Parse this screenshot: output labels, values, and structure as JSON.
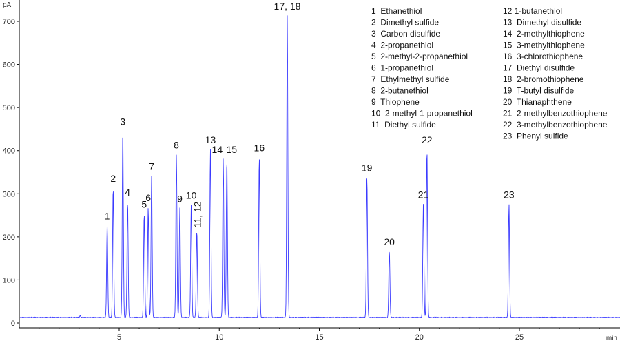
{
  "chart_data": {
    "type": "line",
    "title": "",
    "xlabel": "min",
    "ylabel": "pA",
    "xlim": [
      0,
      30
    ],
    "ylim": [
      0,
      720
    ],
    "x_ticks": [
      5,
      10,
      15,
      20,
      25
    ],
    "y_ticks": [
      0,
      100,
      200,
      300,
      400,
      500,
      600,
      700
    ],
    "baseline": 13,
    "series": [
      {
        "trace_color": "#3b3bff",
        "peaks": [
          {
            "x": 4.4,
            "y": 228
          },
          {
            "x": 4.7,
            "y": 315
          },
          {
            "x": 5.18,
            "y": 447
          },
          {
            "x": 5.42,
            "y": 283
          },
          {
            "x": 6.25,
            "y": 255
          },
          {
            "x": 6.45,
            "y": 270
          },
          {
            "x": 6.62,
            "y": 343
          },
          {
            "x": 7.86,
            "y": 392
          },
          {
            "x": 8.03,
            "y": 268
          },
          {
            "x": 8.6,
            "y": 276
          },
          {
            "x": 8.88,
            "y": 215
          },
          {
            "x": 9.56,
            "y": 404
          },
          {
            "x": 10.2,
            "y": 382
          },
          {
            "x": 10.38,
            "y": 382
          },
          {
            "x": 12.0,
            "y": 386
          },
          {
            "x": 13.4,
            "y": 714
          },
          {
            "x": 17.38,
            "y": 340
          },
          {
            "x": 18.5,
            "y": 168
          },
          {
            "x": 20.2,
            "y": 277
          },
          {
            "x": 20.38,
            "y": 404
          },
          {
            "x": 24.48,
            "y": 277
          }
        ]
      }
    ],
    "peak_labels": [
      {
        "text": "1",
        "x": 4.4,
        "y": 228
      },
      {
        "text": "2",
        "x": 4.7,
        "y": 315
      },
      {
        "text": "3",
        "x": 5.18,
        "y": 447
      },
      {
        "text": "4",
        "x": 5.42,
        "y": 283
      },
      {
        "text": "5",
        "x": 6.25,
        "y": 255
      },
      {
        "text": "6",
        "x": 6.45,
        "y": 270
      },
      {
        "text": "7",
        "x": 6.62,
        "y": 343
      },
      {
        "text": "8",
        "x": 7.86,
        "y": 392
      },
      {
        "text": "9",
        "x": 8.03,
        "y": 268
      },
      {
        "text": "10",
        "x": 8.6,
        "y": 276
      },
      {
        "text": "11, 12",
        "x": 8.88,
        "y": 215,
        "vertical": true
      },
      {
        "text": "13",
        "x": 9.56,
        "y": 404
      },
      {
        "text": "14",
        "x": 9.9,
        "y": 382
      },
      {
        "text": "15",
        "x": 10.62,
        "y": 382
      },
      {
        "text": "16",
        "x": 12.0,
        "y": 386
      },
      {
        "text": "17, 18",
        "x": 13.4,
        "y": 714
      },
      {
        "text": "19",
        "x": 17.38,
        "y": 340
      },
      {
        "text": "20",
        "x": 18.5,
        "y": 168
      },
      {
        "text": "21",
        "x": 20.2,
        "y": 277
      },
      {
        "text": "22",
        "x": 20.38,
        "y": 404
      },
      {
        "text": "23",
        "x": 24.48,
        "y": 277
      }
    ],
    "legend": {
      "placement": "top-right",
      "columns": [
        [
          "1  Ethanethiol",
          "2  Dimethyl sulfide",
          "3  Carbon disulfide",
          "4  2-propanethiol",
          "5  2-methyl-2-propanethiol",
          "6  1-propanethiol",
          "7  Ethylmethyl sulfide",
          "8  2-butanethiol",
          "9  Thiophene",
          "10  2-methyl-1-propanethiol",
          "11  Diethyl sulfide"
        ],
        [
          "12 1-butanethiol",
          "13  Dimethyl disulfide",
          "14  2-methylthiophene",
          "15  3-methylthiophene",
          "16  3-chlorothiophene",
          "17  Diethyl disulfide",
          "18  2-bromothiophene",
          "19  T-butyl disulfide",
          "20  Thianaphthene",
          "21  2-methylbenzothiophene",
          "22  3-methylbenzothiophene",
          "23  Phenyl sulfide"
        ]
      ]
    },
    "grid": false
  }
}
